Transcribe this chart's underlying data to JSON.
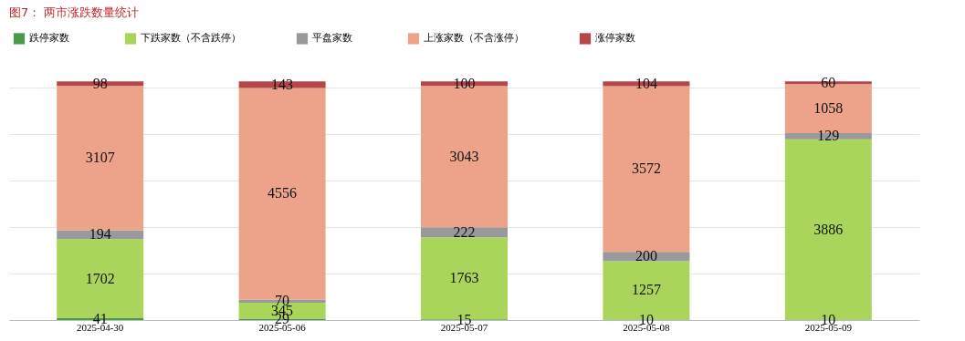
{
  "chart_data": {
    "type": "bar",
    "title": "图7：  两市涨跌数量统计",
    "categories": [
      "2025-04-30",
      "2025-05-06",
      "2025-05-07",
      "2025-05-08",
      "2025-05-09"
    ],
    "stacked": true,
    "data_labels": true,
    "legend": "top",
    "grid": "y",
    "tick_labels": "x",
    "series": [
      {
        "name": "跌停家数",
        "color": "#4a9a4a",
        "values": [
          41,
          29,
          15,
          10,
          10
        ]
      },
      {
        "name": "下跌家数（不含跌停）",
        "color": "#a9d65a",
        "values": [
          1702,
          345,
          1763,
          1257,
          3886
        ]
      },
      {
        "name": "平盘家数",
        "color": "#999999",
        "values": [
          194,
          70,
          222,
          200,
          129
        ]
      },
      {
        "name": "上涨家数（不含涨停）",
        "color": "#eda38a",
        "values": [
          3107,
          4556,
          3043,
          3572,
          1058
        ]
      },
      {
        "name": "涨停家数",
        "color": "#b5474a",
        "values": [
          98,
          143,
          100,
          104,
          60
        ]
      }
    ]
  }
}
